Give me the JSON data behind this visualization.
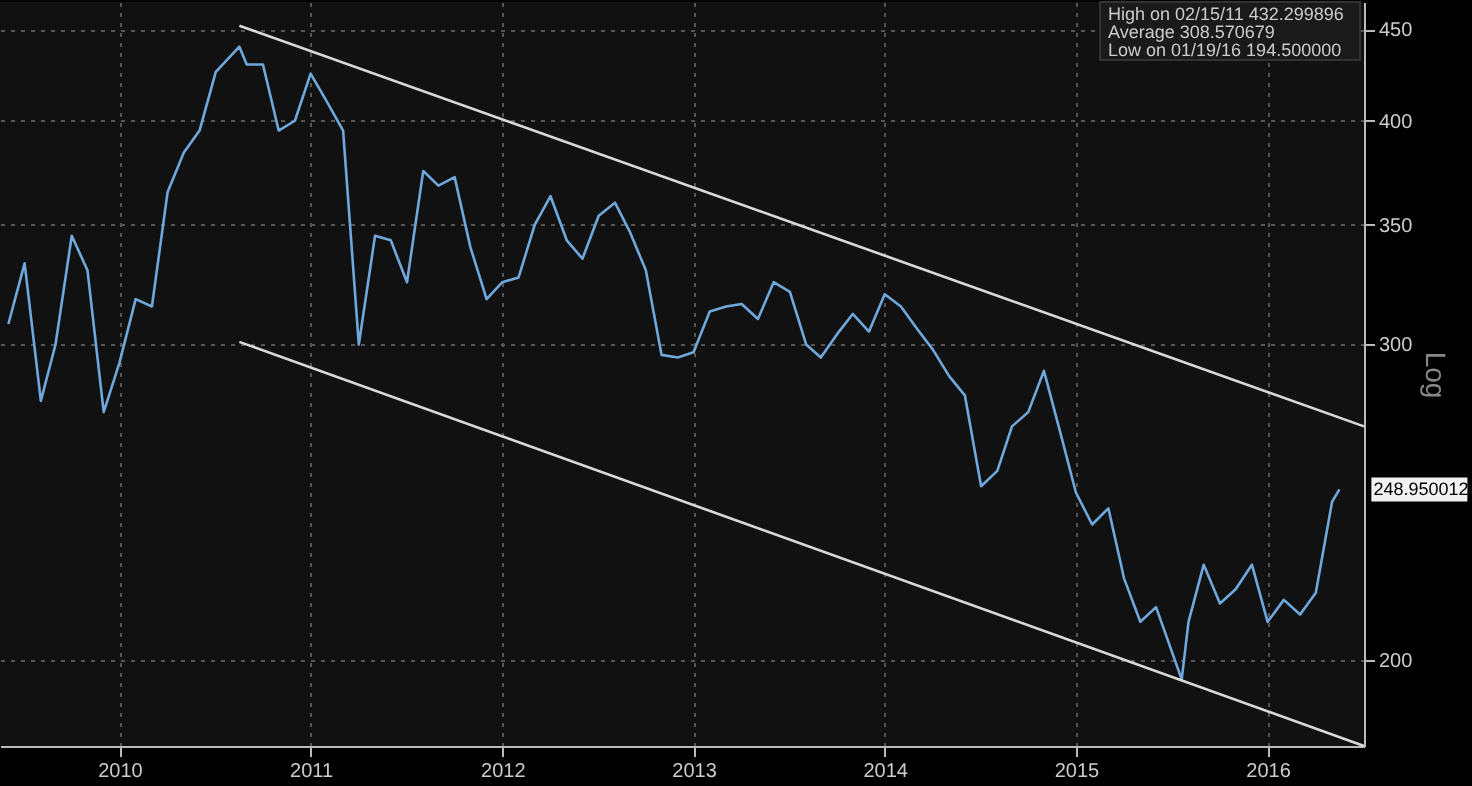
{
  "chart_data": {
    "type": "line",
    "ylabel": "Log",
    "log": true,
    "grid": true,
    "legend": false,
    "marker": "none",
    "line_style": "solid",
    "xlim": [
      "2009-11-15",
      "2017-01-01"
    ],
    "ylim": [
      179,
      466
    ],
    "xticks": [
      {
        "value": "2010-07-01",
        "label": "2010"
      },
      {
        "value": "2011-07-01",
        "label": "2011"
      },
      {
        "value": "2012-07-01",
        "label": "2012"
      },
      {
        "value": "2013-07-01",
        "label": "2013"
      },
      {
        "value": "2014-07-01",
        "label": "2014"
      },
      {
        "value": "2015-07-01",
        "label": "2015"
      },
      {
        "value": "2016-07-01",
        "label": "2016"
      }
    ],
    "yticks": [
      200,
      300,
      350,
      400,
      450
    ],
    "annotations": [
      "High on 02/15/11  432.299896",
      "Average  308.570679",
      "Low on 01/19/16  194.500000",
      {
        "text": "248.950012",
        "x": "2016-11-15",
        "y": 248.95
      }
    ],
    "series": [
      {
        "color": "#6fa8dc",
        "x": [
          "2009-12",
          "2010-01",
          "2010-02",
          "2010-03",
          "2010-04",
          "2010-05",
          "2010-06",
          "2010-07",
          "2010-08",
          "2010-09",
          "2010-10",
          "2010-11",
          "2010-12",
          "2011-01",
          "2011-02-15",
          "2011-03",
          "2011-04",
          "2011-05",
          "2011-06",
          "2011-07",
          "2011-08",
          "2011-09",
          "2011-10",
          "2011-11",
          "2011-12",
          "2012-01",
          "2012-02",
          "2012-03",
          "2012-04",
          "2012-05",
          "2012-06",
          "2012-07",
          "2012-08",
          "2012-09",
          "2012-10",
          "2012-11",
          "2012-12",
          "2013-01",
          "2013-02",
          "2013-03",
          "2013-04",
          "2013-05",
          "2013-06",
          "2013-07",
          "2013-08",
          "2013-09",
          "2013-10",
          "2013-11",
          "2013-12",
          "2014-01",
          "2014-02",
          "2014-03",
          "2014-04",
          "2014-05",
          "2014-06",
          "2014-07",
          "2014-08",
          "2014-09",
          "2014-10",
          "2014-11",
          "2014-12",
          "2015-01",
          "2015-02",
          "2015-03",
          "2015-04",
          "2015-05",
          "2015-06",
          "2015-07",
          "2015-08",
          "2015-09",
          "2015-10",
          "2015-11",
          "2015-12",
          "2016-01-19",
          "2016-02",
          "2016-03",
          "2016-04",
          "2016-05",
          "2016-06",
          "2016-07",
          "2016-08",
          "2016-09",
          "2016-10",
          "2016-11",
          "2016-11-15"
        ],
        "values": [
          308,
          333,
          279,
          300,
          345,
          330,
          275,
          293,
          318,
          315,
          365,
          384,
          395,
          426,
          440,
          430,
          430,
          395,
          400,
          425,
          410,
          395,
          300,
          345,
          343,
          325,
          375,
          368,
          372,
          340,
          318,
          325,
          327,
          350,
          363,
          343,
          335,
          354,
          360,
          347,
          330,
          296,
          295,
          297,
          313,
          315,
          316,
          310,
          325,
          321,
          300,
          295,
          304,
          312,
          305,
          320,
          315,
          306,
          298,
          288,
          281,
          250,
          255,
          270,
          275,
          290,
          268,
          248,
          238,
          243,
          222,
          210,
          214,
          195,
          210,
          226,
          215,
          219,
          226,
          210,
          216,
          212,
          218,
          245,
          249
        ]
      },
      {
        "color": "#d9d9d9",
        "x": [
          "2011-02-15",
          "2017-01-01"
        ],
        "values": [
          452,
          270
        ]
      },
      {
        "color": "#d9d9d9",
        "x": [
          "2011-02-15",
          "2017-01-01"
        ],
        "values": [
          301,
          179
        ]
      }
    ]
  }
}
